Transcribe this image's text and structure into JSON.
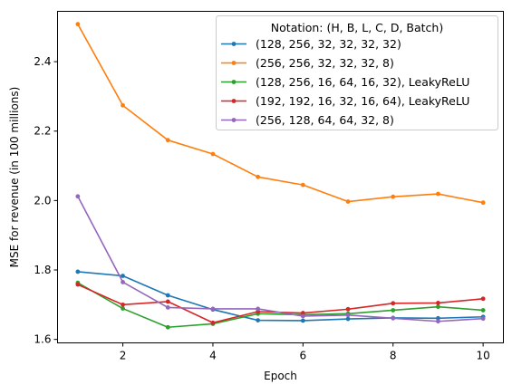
{
  "chart_data": {
    "type": "line",
    "xlabel": "Epoch",
    "ylabel": "MSE for revenue (in 100 millions)",
    "xlim": [
      0.55,
      10.45
    ],
    "ylim": [
      1.59,
      2.545
    ],
    "x_ticks": [
      2,
      4,
      6,
      8,
      10
    ],
    "y_ticks": [
      1.6,
      1.8,
      2.0,
      2.2,
      2.4
    ],
    "x_tick_labels": [
      "2",
      "4",
      "6",
      "8",
      "10"
    ],
    "y_tick_labels": [
      "1.6",
      "1.8",
      "2.0",
      "2.2",
      "2.4"
    ],
    "legend_title": "Notation: (H, B, L, C, D, Batch)",
    "legend_position": "top-right",
    "grid": false,
    "x": [
      1,
      2,
      3,
      4,
      5,
      6,
      7,
      8,
      9,
      10
    ],
    "series": [
      {
        "name": "(128, 256, 32, 32, 32, 32)",
        "color": "#1f77b4",
        "values": [
          1.795,
          1.783,
          1.727,
          1.686,
          1.655,
          1.654,
          1.659,
          1.662,
          1.661,
          1.665
        ]
      },
      {
        "name": "(256, 256, 32, 32, 32, 8)",
        "color": "#ff7f0e",
        "values": [
          2.508,
          2.274,
          2.174,
          2.134,
          2.068,
          2.045,
          1.997,
          2.011,
          2.019,
          1.994
        ]
      },
      {
        "name": "(128, 256, 16, 64, 16, 32), LeakyReLU",
        "color": "#2ca02c",
        "values": [
          1.763,
          1.689,
          1.635,
          1.645,
          1.674,
          1.671,
          1.674,
          1.684,
          1.694,
          1.684
        ]
      },
      {
        "name": "(192, 192, 16, 32, 16, 64), LeakyReLU",
        "color": "#d62728",
        "values": [
          1.758,
          1.7,
          1.709,
          1.648,
          1.68,
          1.676,
          1.687,
          1.704,
          1.705,
          1.717
        ]
      },
      {
        "name": "(256, 128, 64, 64, 32, 8)",
        "color": "#9467bd",
        "values": [
          2.012,
          1.765,
          1.692,
          1.688,
          1.688,
          1.667,
          1.67,
          1.661,
          1.652,
          1.66
        ]
      }
    ]
  }
}
